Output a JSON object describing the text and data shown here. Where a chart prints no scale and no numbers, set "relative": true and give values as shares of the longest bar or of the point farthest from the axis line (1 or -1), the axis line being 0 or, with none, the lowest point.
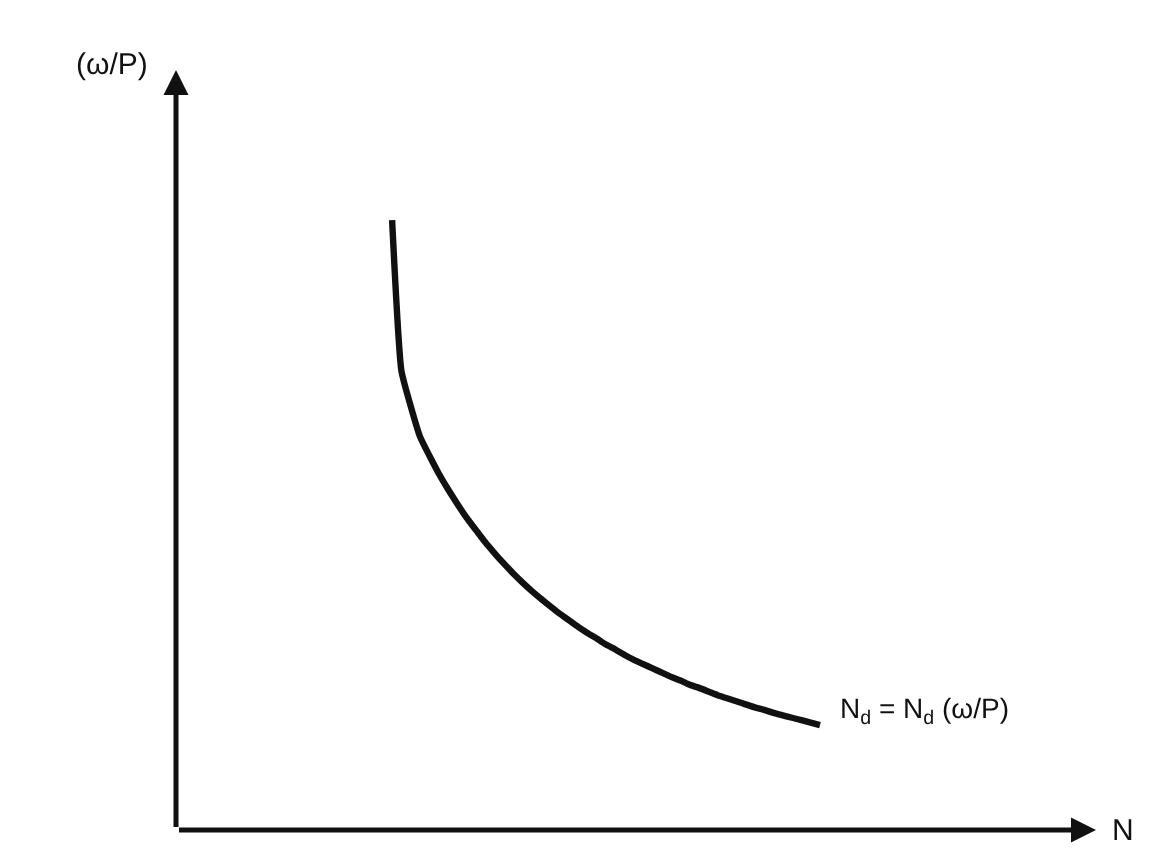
{
  "chart_data": {
    "type": "line",
    "relative": true,
    "categories": [
      null,
      null,
      null,
      null,
      null,
      null,
      null,
      null,
      null,
      null,
      null,
      null,
      null,
      null,
      null,
      null,
      null,
      null,
      null,
      null,
      null,
      null,
      null,
      null,
      null,
      null,
      null,
      null,
      null,
      null,
      null,
      null,
      null,
      null,
      null,
      null,
      null,
      null,
      null,
      null,
      null,
      null,
      null,
      null,
      null,
      null,
      null
    ],
    "series": [
      {
        "color": "#111111",
        "values": [
          1.0,
          0.753,
          0.695,
          0.645,
          0.614,
          0.585,
          0.559,
          0.535,
          0.512,
          0.492,
          0.472,
          0.454,
          0.437,
          0.421,
          0.406,
          0.392,
          0.379,
          0.367,
          0.355,
          0.344,
          0.333,
          0.323,
          0.314,
          0.304,
          0.296,
          0.287,
          0.279,
          0.272,
          0.265,
          0.258,
          0.251,
          0.245,
          0.238,
          0.233,
          0.227,
          0.221,
          0.216,
          0.211,
          0.206,
          0.201,
          0.197,
          0.192,
          0.188,
          0.184,
          0.18,
          0.176,
          0.172
        ]
      }
    ],
    "annotations": [
      "N$_{d}$ = N$_{d}$ (ω/P)",
      "N",
      "(ω/P)"
    ],
    "marker": "none",
    "line_style": "solid"
  }
}
